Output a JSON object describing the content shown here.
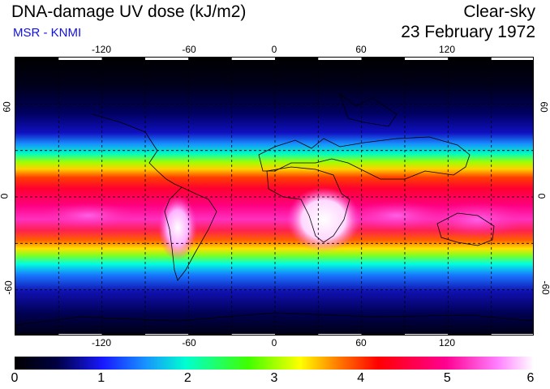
{
  "header": {
    "title": "DNA-damage UV dose (kJ/m2)",
    "subtitle": "MSR - KNMI",
    "sky_condition": "Clear-sky",
    "date": "23 February 1972"
  },
  "map": {
    "lon_range": [
      -180,
      180
    ],
    "lat_range": [
      -90,
      90
    ],
    "lon_ticks": [
      "-120",
      "-60",
      "0",
      "60",
      "120"
    ],
    "lat_ticks": [
      "60",
      "0",
      "-60"
    ],
    "gridlines": true
  },
  "colorbar": {
    "min": 0,
    "max": 6,
    "labels": [
      "0",
      "1",
      "2",
      "3",
      "4",
      "5",
      "6"
    ],
    "stops": [
      "#000000",
      "#08084a",
      "#1818ff",
      "#00ffff",
      "#00ff00",
      "#ffff00",
      "#ff8000",
      "#ff0000",
      "#ff00a0",
      "#ff80ff",
      "#ffffff"
    ]
  }
}
